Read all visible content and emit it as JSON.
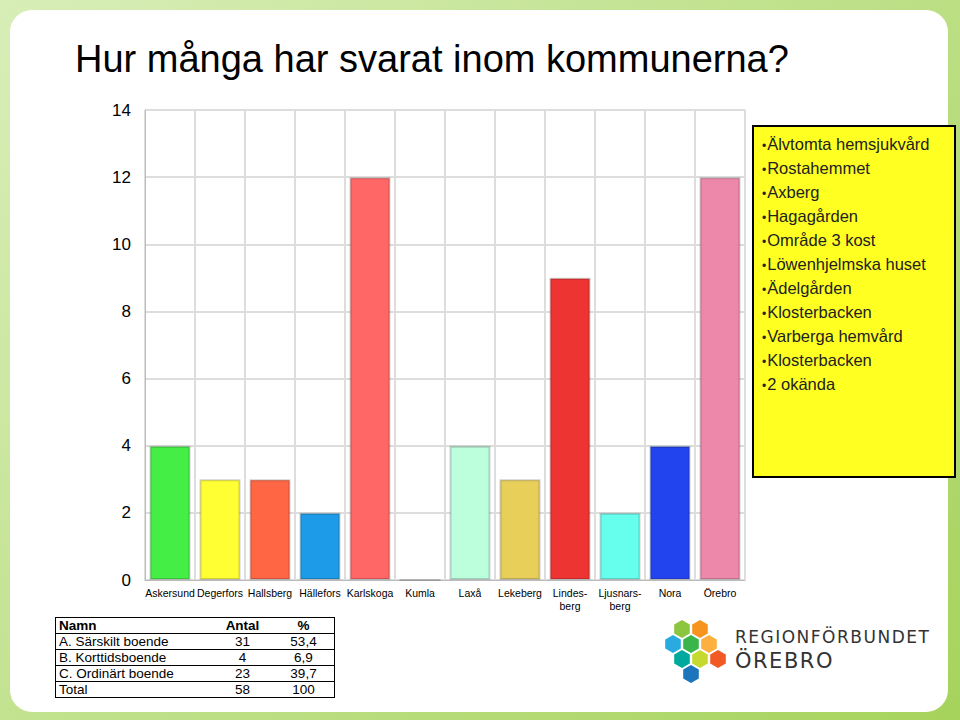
{
  "title": "Hur många har svarat inom kommunerna?",
  "chart_data": {
    "type": "bar",
    "categories": [
      "Askersund",
      "Degerfors",
      "Hallsberg",
      "Hällefors",
      "Karlskoga",
      "Kumla",
      "Laxå",
      "Lekeberg",
      "Lindes-\nberg",
      "Ljusnars-\nberg",
      "Nora",
      "Örebro"
    ],
    "values": [
      4,
      3,
      3,
      2,
      12,
      0,
      4,
      3,
      9,
      2,
      4,
      12
    ],
    "colors": [
      "#44ee44",
      "#ffff33",
      "#ff6644",
      "#1e9be8",
      "#ff6666",
      "#cccccc",
      "#bbffdd",
      "#e8cf5a",
      "#ee3333",
      "#66ffee",
      "#2244ee",
      "#ee88aa"
    ],
    "ylim": [
      0,
      14
    ],
    "yticks": [
      0,
      2,
      4,
      6,
      8,
      10,
      12,
      14
    ],
    "grid": true
  },
  "note": [
    "Älvtomta hemsjukvård",
    "Rostahemmet",
    "Axberg",
    "Hagagården",
    "Område 3 kost",
    "Löwenhjelmska huset",
    "Ädelgården",
    "Klosterbacken",
    "Varberga hemvård",
    "Klosterbacken",
    "2 okända"
  ],
  "table": {
    "header": [
      "Namn",
      "Antal",
      "%"
    ],
    "rows": [
      [
        "A. Särskilt boende",
        "31",
        "53,4"
      ],
      [
        "B. Korttidsboende",
        "4",
        "6,9"
      ],
      [
        "C. Ordinärt boende",
        "23",
        "39,7"
      ],
      [
        "Total",
        "58",
        "100"
      ]
    ]
  },
  "logo": [
    "REGIONFÖRBUNDET",
    "ÖREBRO"
  ]
}
